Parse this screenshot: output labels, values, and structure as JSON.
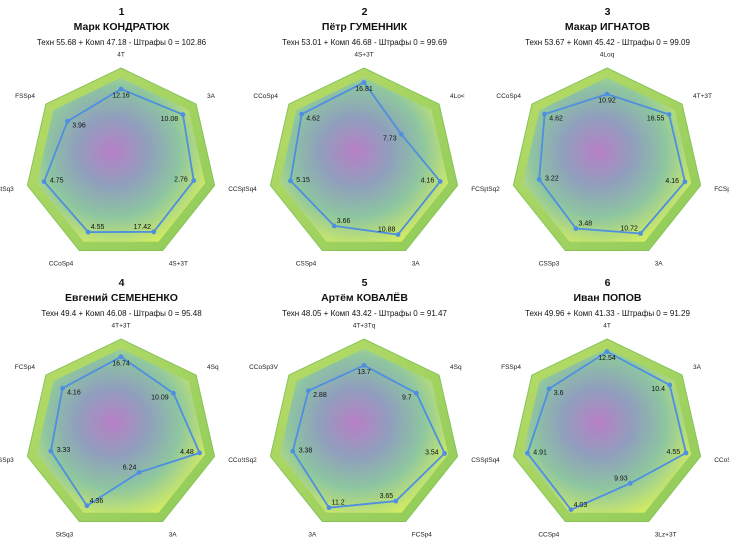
{
  "chart_data": [
    {
      "type": "radar",
      "rank": "1",
      "title": "Марк КОНДРАТЮК",
      "subtitle": "Техн 55.68 + Комп 47.18 - Штрафы 0 = 102.86",
      "labels": [
        "4T",
        "3A",
        "CCSp2",
        "4S+3T",
        "CCoSp4",
        "StSq3",
        "FSSp4"
      ],
      "values": [
        12.16,
        10.08,
        2.76,
        17.42,
        4.55,
        4.75,
        3.96
      ],
      "rmax": [
        14,
        11,
        3.2,
        20,
        5.2,
        5.2,
        5
      ]
    },
    {
      "type": "radar",
      "rank": "2",
      "title": "Пётр ГУМЕННИК",
      "subtitle": "Техн 53.01 + Комп 46.68 - Штрафы 0 = 99.69",
      "labels": [
        "4S+3T",
        "4Lo<",
        "FCSp4",
        "3A",
        "CSSp4",
        "StSq4",
        "CCoSp4"
      ],
      "values": [
        16.81,
        7.73,
        4.16,
        10.88,
        3.66,
        5.15,
        4.62
      ],
      "rmax": [
        17.8,
        14,
        4.6,
        12,
        4.6,
        5.9,
        5
      ]
    },
    {
      "type": "radar",
      "rank": "3",
      "title": "Макар ИГНАТОВ",
      "subtitle": "Техн 53.67 + Комп 45.42 - Штрафы 0 = 99.09",
      "labels": [
        "4Loq",
        "4T+3T",
        "FCSp4",
        "3A",
        "CSSp3",
        "StSq2",
        "CCoSp4"
      ],
      "values": [
        10.92,
        16.55,
        4.16,
        10.72,
        3.48,
        3.22,
        4.62
      ],
      "rmax": [
        13.5,
        18,
        4.5,
        12,
        4.2,
        4,
        5
      ]
    },
    {
      "type": "radar",
      "rank": "4",
      "title": "Евгений СЕМЕНЕНКО",
      "subtitle": "Техн 49.4 + Комп 46.08 - Штрафы 0 = 95.48",
      "labels": [
        "4T+3T",
        "4Sq",
        "CCoSp4",
        "3A",
        "StSq3",
        "CSSp3",
        "FCSp4"
      ],
      "values": [
        16.74,
        10.09,
        4.48,
        6.24,
        4.36,
        3.33,
        4.16
      ],
      "rmax": [
        18.5,
        13,
        4.8,
        13,
        4.8,
        4,
        4.8
      ]
    },
    {
      "type": "radar",
      "rank": "5",
      "title": "Артём КОВАЛЁВ",
      "subtitle": "Техн 48.05 + Комп 43.42 - Штрафы 0 = 91.47",
      "labels": [
        "4T+3Tq",
        "4Sq",
        "CSSp4",
        "FCSp4",
        "3A",
        "StSq2",
        "CCoSp3V"
      ],
      "values": [
        13.7,
        9.7,
        3.54,
        3.65,
        11.2,
        3.38,
        2.88
      ],
      "rmax": [
        17,
        12.5,
        3.7,
        4.3,
        12,
        4,
        3.5
      ]
    },
    {
      "type": "radar",
      "rank": "6",
      "title": "Иван ПОПОВ",
      "subtitle": "Техн 49.96 + Комп 41.33 - Штрафы 0 = 91.29",
      "labels": [
        "4T",
        "3A",
        "CCoSp4",
        "3Lz+3T",
        "CCSp4",
        "StSq4",
        "FSSp4"
      ],
      "values": [
        12.54,
        10.4,
        4.55,
        9.93,
        4.03,
        4.91,
        3.6
      ],
      "rmax": [
        13,
        11.2,
        4.85,
        16,
        4.2,
        5.2,
        4.2
      ]
    }
  ]
}
